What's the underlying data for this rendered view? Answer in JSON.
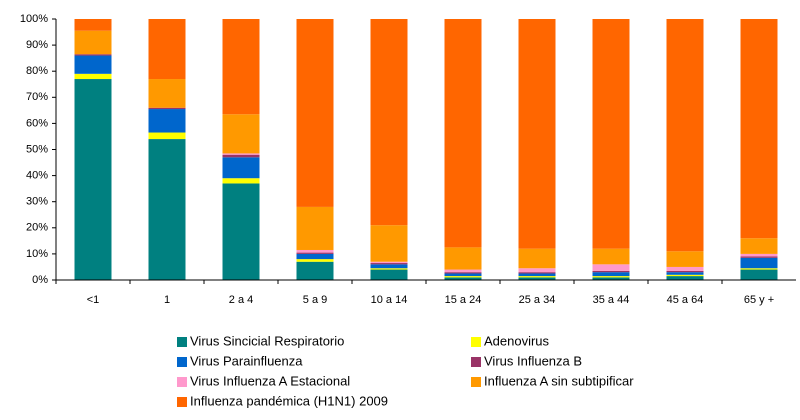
{
  "chart_data": {
    "type": "stacked_bar_percent",
    "categories": [
      "<1",
      "1",
      "2 a 4",
      "5 a 9",
      "10 a 14",
      "15 a 24",
      "25 a 34",
      "35 a 44",
      "45 a 64",
      "65 y +"
    ],
    "series": [
      {
        "name": "Virus Sincicial Respiratorio",
        "color": "#008080",
        "values": [
          77,
          54,
          37,
          7,
          4,
          1,
          1,
          1,
          1.5,
          4
        ]
      },
      {
        "name": "Adenovirus",
        "color": "#ffff00",
        "values": [
          2,
          2.5,
          2,
          1,
          0.5,
          0.5,
          0.5,
          0.5,
          0.5,
          0.5
        ]
      },
      {
        "name": "Virus Parainfluenza",
        "color": "#0066cc",
        "values": [
          7,
          9,
          8,
          2,
          1.5,
          1,
          1,
          1.5,
          1,
          4
        ]
      },
      {
        "name": "Virus Influenza B",
        "color": "#993366",
        "values": [
          0.5,
          0.5,
          1,
          0.5,
          0.5,
          0.5,
          0.5,
          0.5,
          0.5,
          0.5
        ]
      },
      {
        "name": "Virus Influenza A Estacional",
        "color": "#ff99cc",
        "values": [
          0,
          0,
          0.5,
          1,
          0.5,
          1,
          1.5,
          2.5,
          1.5,
          1
        ]
      },
      {
        "name": "Influenza A sin subtipificar",
        "color": "#ff9900",
        "values": [
          9,
          11,
          15,
          16.5,
          14,
          8.5,
          7.5,
          6,
          6,
          6
        ]
      },
      {
        "name": "Influenza pandémica (H1N1) 2009",
        "color": "#ff6600",
        "values": [
          4.5,
          23,
          36.5,
          72,
          79,
          87.5,
          88,
          88,
          89,
          84
        ]
      }
    ],
    "ylim": [
      0,
      100
    ],
    "yticks": [
      {
        "value": 0,
        "label": "0%"
      },
      {
        "value": 10,
        "label": "10%"
      },
      {
        "value": 20,
        "label": "20%"
      },
      {
        "value": 30,
        "label": "30%"
      },
      {
        "value": 40,
        "label": "40%"
      },
      {
        "value": 50,
        "label": "50%"
      },
      {
        "value": 60,
        "label": "60%"
      },
      {
        "value": 70,
        "label": "70%"
      },
      {
        "value": 80,
        "label": "80%"
      },
      {
        "value": 90,
        "label": "90%"
      },
      {
        "value": 100,
        "label": "100%"
      }
    ],
    "grid": false,
    "legend": "bottom"
  }
}
